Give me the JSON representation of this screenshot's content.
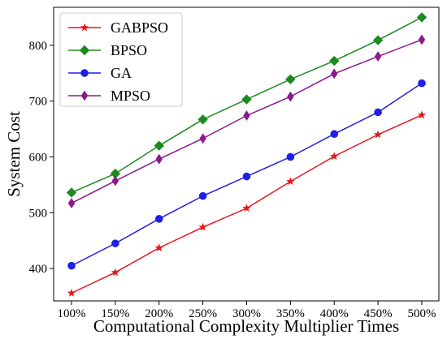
{
  "chart_data": {
    "type": "line",
    "categories": [
      "100%",
      "150%",
      "200%",
      "250%",
      "300%",
      "350%",
      "400%",
      "450%",
      "500%"
    ],
    "series": [
      {
        "name": "GABPSO",
        "values": [
          356,
          393,
          437,
          474,
          508,
          556,
          601,
          640,
          675
        ],
        "color": "#e8161b",
        "marker": "star"
      },
      {
        "name": "BPSO",
        "values": [
          536,
          570,
          620,
          667,
          703,
          739,
          772,
          809,
          850
        ],
        "color": "#1e8a1e",
        "marker": "diamond"
      },
      {
        "name": "GA",
        "values": [
          405,
          445,
          489,
          530,
          565,
          600,
          641,
          680,
          732
        ],
        "color": "#1f1fe6",
        "marker": "circle"
      },
      {
        "name": "MPSO",
        "values": [
          517,
          557,
          596,
          633,
          674,
          708,
          749,
          780,
          810
        ],
        "color": "#8a1a8a",
        "marker": "thin-diamond"
      }
    ],
    "title": "",
    "xlabel": "Computational Complexity Multiplier Times",
    "ylabel": "System Cost",
    "ylim": [
      342,
      868
    ],
    "yticks": [
      400,
      500,
      600,
      700,
      800
    ],
    "grid": false,
    "legend_position": "top-left"
  }
}
